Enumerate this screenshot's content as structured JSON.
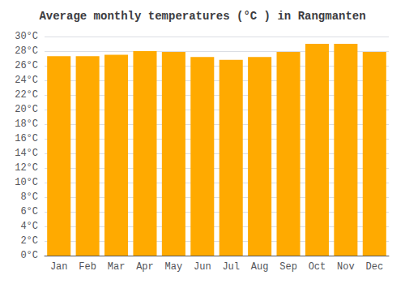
{
  "chart_data": {
    "type": "bar",
    "title": "Average monthly temperatures (°C ) in Rangmanten",
    "categories": [
      "Jan",
      "Feb",
      "Mar",
      "Apr",
      "May",
      "Jun",
      "Jul",
      "Aug",
      "Sep",
      "Oct",
      "Nov",
      "Dec"
    ],
    "values": [
      27.3,
      27.3,
      27.5,
      28.0,
      27.9,
      27.2,
      26.8,
      27.2,
      27.9,
      29.0,
      29.0,
      27.9
    ],
    "color": "#FFAA00",
    "ylim": [
      0,
      30
    ],
    "yticks": [
      {
        "value": 0,
        "label": "0°C"
      },
      {
        "value": 2,
        "label": "2°C"
      },
      {
        "value": 4,
        "label": "4°C"
      },
      {
        "value": 6,
        "label": "6°C"
      },
      {
        "value": 8,
        "label": "8°C"
      },
      {
        "value": 10,
        "label": "10°C"
      },
      {
        "value": 12,
        "label": "12°C"
      },
      {
        "value": 14,
        "label": "14°C"
      },
      {
        "value": 16,
        "label": "16°C"
      },
      {
        "value": 18,
        "label": "18°C"
      },
      {
        "value": 20,
        "label": "20°C"
      },
      {
        "value": 22,
        "label": "22°C"
      },
      {
        "value": 24,
        "label": "24°C"
      },
      {
        "value": 26,
        "label": "26°C"
      },
      {
        "value": 28,
        "label": "28°C"
      },
      {
        "value": 30,
        "label": "30°C"
      }
    ],
    "grid": true
  }
}
